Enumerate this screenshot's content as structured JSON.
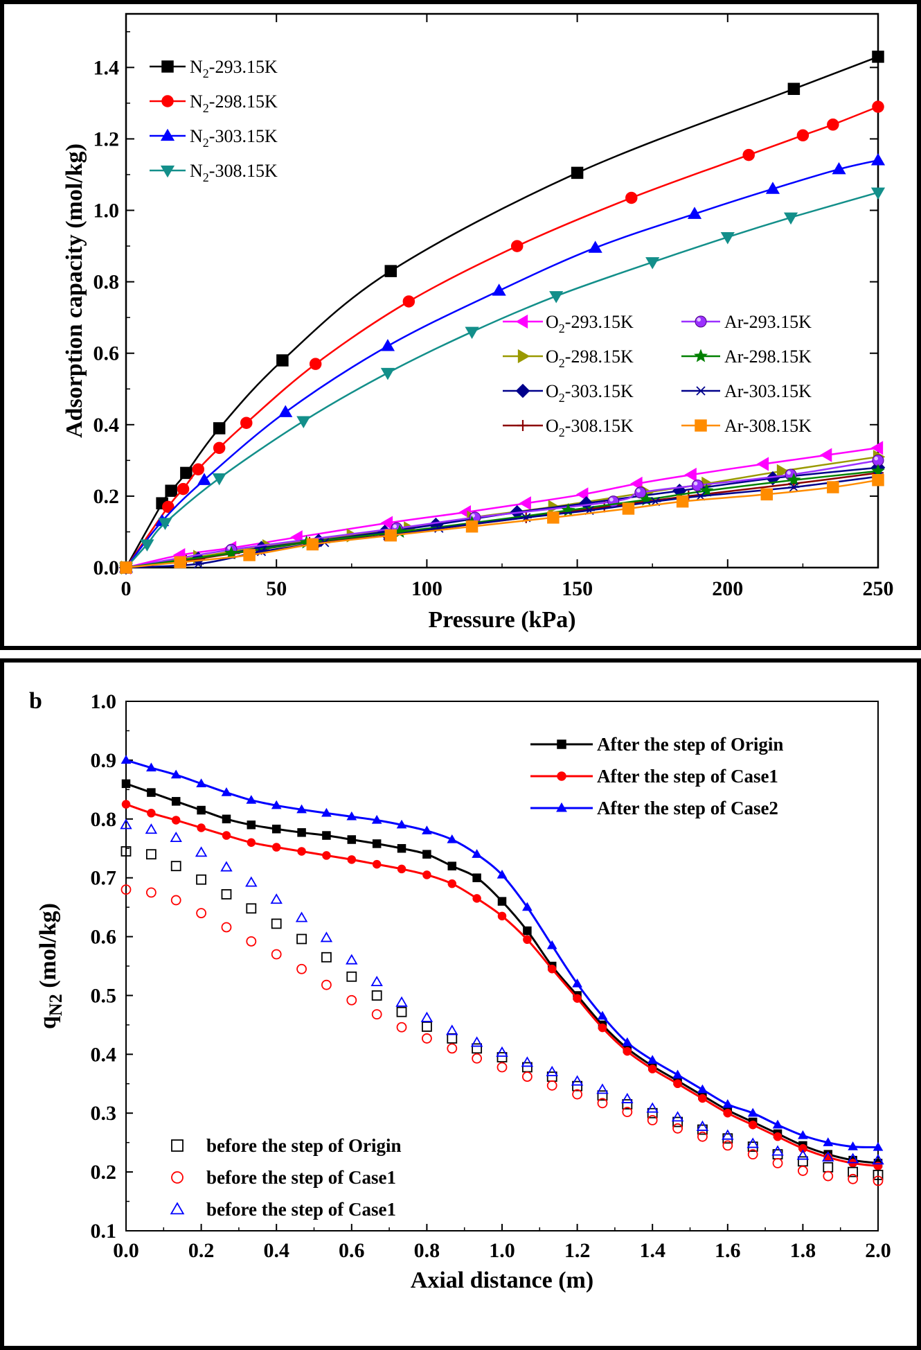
{
  "chart_data": [
    {
      "type": "line",
      "panel_label": "",
      "xlabel": "Pressure (kPa)",
      "ylabel": "Adsorption capacity (mol/kg)",
      "xlim": [
        0,
        250
      ],
      "ylim": [
        0,
        1.55
      ],
      "xticks": [
        0,
        50,
        100,
        150,
        200,
        250
      ],
      "xtick_labels": [
        "0",
        "50",
        "100",
        "150",
        "200",
        "250"
      ],
      "yticks": [
        0.0,
        0.2,
        0.4,
        0.6,
        0.8,
        1.0,
        1.2,
        1.4
      ],
      "ytick_labels": [
        "0.0",
        "0.2",
        "0.4",
        "0.6",
        "0.8",
        "1.0",
        "1.2",
        "1.4"
      ],
      "grid": false,
      "legend_placement": "top-left and center-right",
      "series": [
        {
          "name": "N2-293.15K",
          "label_main": "N",
          "label_sub": "2",
          "label_rest": "-293.15K",
          "color": "#000000",
          "marker": "square",
          "legend_group": "left",
          "x": [
            0,
            12,
            15,
            20,
            31,
            52,
            88,
            150,
            222,
            250
          ],
          "y": [
            0,
            0.18,
            0.215,
            0.265,
            0.39,
            0.58,
            0.83,
            1.105,
            1.34,
            1.43
          ]
        },
        {
          "name": "N2-298.15K",
          "label_main": "N",
          "label_sub": "2",
          "label_rest": "-298.15K",
          "color": "#ff0000",
          "marker": "circle",
          "legend_group": "left",
          "x": [
            0,
            14,
            19,
            24,
            31,
            40,
            63,
            94,
            130,
            168,
            207,
            225,
            235,
            250
          ],
          "y": [
            0,
            0.17,
            0.22,
            0.275,
            0.335,
            0.405,
            0.57,
            0.745,
            0.9,
            1.035,
            1.155,
            1.21,
            1.24,
            1.29
          ]
        },
        {
          "name": "N2-303.15K",
          "label_main": "N",
          "label_sub": "2",
          "label_rest": "-303.15K",
          "color": "#0000ff",
          "marker": "triangle-up",
          "legend_group": "left",
          "x": [
            0,
            12,
            26,
            53,
            87,
            124,
            156,
            189,
            215,
            237,
            250
          ],
          "y": [
            0,
            0.13,
            0.245,
            0.435,
            0.62,
            0.775,
            0.895,
            0.99,
            1.06,
            1.115,
            1.14
          ]
        },
        {
          "name": "N2-308.15K",
          "label_main": "N",
          "label_sub": "2",
          "label_rest": "-308.15K",
          "color": "#138f8a",
          "marker": "triangle-down",
          "legend_group": "left",
          "x": [
            0,
            7,
            13,
            31,
            59,
            87,
            115,
            143,
            175,
            200,
            221,
            250
          ],
          "y": [
            0,
            0.065,
            0.125,
            0.25,
            0.41,
            0.545,
            0.66,
            0.76,
            0.855,
            0.925,
            0.98,
            1.05
          ]
        },
        {
          "name": "O2-293.15K",
          "label_main": "O",
          "label_sub": "2",
          "label_rest": "-293.15K",
          "color": "#ff00ff",
          "marker": "triangle-left",
          "legend_group": "right",
          "x": [
            0,
            18,
            35,
            57,
            87,
            113,
            133,
            152,
            170,
            188,
            212,
            233,
            250
          ],
          "y": [
            0,
            0.035,
            0.055,
            0.085,
            0.125,
            0.155,
            0.18,
            0.205,
            0.235,
            0.26,
            0.29,
            0.315,
            0.335
          ]
        },
        {
          "name": "O2-298.15K",
          "label_main": "O",
          "label_sub": "2",
          "label_rest": "-298.15K",
          "color": "#999900",
          "marker": "triangle-right",
          "legend_group": "right",
          "x": [
            0,
            24,
            47,
            75,
            94,
            115,
            142,
            173,
            193,
            218,
            250
          ],
          "y": [
            0,
            0.03,
            0.06,
            0.09,
            0.11,
            0.14,
            0.17,
            0.21,
            0.235,
            0.27,
            0.31
          ]
        },
        {
          "name": "O2-303.15K",
          "label_main": "O",
          "label_sub": "2",
          "label_rest": "-303.15K",
          "color": "#00008b",
          "marker": "diamond",
          "legend_group": "right",
          "x": [
            0,
            24,
            45,
            64,
            86,
            103,
            130,
            153,
            184,
            215,
            250
          ],
          "y": [
            0,
            0.025,
            0.055,
            0.075,
            0.1,
            0.12,
            0.155,
            0.18,
            0.215,
            0.25,
            0.28
          ]
        },
        {
          "name": "O2-308.15K",
          "label_main": "O",
          "label_sub": "2",
          "label_rest": "-308.15K",
          "color": "#8b0000",
          "marker": "plus",
          "legend_group": "right",
          "x": [
            0,
            20,
            36,
            61,
            86,
            114,
            133,
            159,
            187,
            222,
            250
          ],
          "y": [
            0,
            0.02,
            0.04,
            0.07,
            0.09,
            0.12,
            0.14,
            0.17,
            0.2,
            0.235,
            0.265
          ]
        },
        {
          "name": "Ar-293.15K",
          "label_main": "Ar-293.15K",
          "label_sub": "",
          "label_rest": "",
          "color": "#9b30ff",
          "marker": "sphere",
          "legend_group": "right",
          "x": [
            0,
            35,
            90,
            116,
            162,
            171,
            190,
            221,
            250
          ],
          "y": [
            0,
            0.05,
            0.11,
            0.14,
            0.185,
            0.21,
            0.23,
            0.26,
            0.3
          ]
        },
        {
          "name": "Ar-298.15K",
          "label_main": "Ar-298.15K",
          "label_sub": "",
          "label_rest": "",
          "color": "#008000",
          "marker": "star",
          "legend_group": "right",
          "x": [
            0,
            35,
            60,
            91,
            115,
            147,
            173,
            193,
            222,
            250
          ],
          "y": [
            0,
            0.04,
            0.07,
            0.1,
            0.125,
            0.16,
            0.19,
            0.215,
            0.245,
            0.27
          ]
        },
        {
          "name": "Ar-303.15K",
          "label_main": "Ar-303.15K",
          "label_sub": "",
          "label_rest": "",
          "color": "#00008b",
          "marker": "asterisk",
          "legend_group": "right",
          "x": [
            0,
            24,
            45,
            66,
            87,
            104,
            133,
            154,
            176,
            191,
            222,
            250
          ],
          "y": [
            0,
            0.01,
            0.045,
            0.07,
            0.09,
            0.11,
            0.14,
            0.16,
            0.185,
            0.2,
            0.225,
            0.255
          ]
        },
        {
          "name": "Ar-308.15K",
          "label_main": "Ar-308.15K",
          "label_sub": "",
          "label_rest": "",
          "color": "#ff8c00",
          "marker": "square",
          "legend_group": "right",
          "x": [
            0,
            18,
            41,
            62,
            88,
            115,
            142,
            167,
            185,
            213,
            235,
            250
          ],
          "y": [
            0,
            0.015,
            0.035,
            0.065,
            0.09,
            0.115,
            0.14,
            0.165,
            0.185,
            0.205,
            0.225,
            0.245
          ]
        }
      ]
    },
    {
      "type": "line",
      "panel_label": "b",
      "xlabel": "Axial distance (m)",
      "ylabel_main": "q",
      "ylabel_sub": "N2",
      "ylabel_rest": " (mol/kg)",
      "xlim": [
        0,
        2.0
      ],
      "ylim": [
        0.1,
        1.0
      ],
      "xticks": [
        0.0,
        0.2,
        0.4,
        0.6,
        0.8,
        1.0,
        1.2,
        1.4,
        1.6,
        1.8,
        2.0
      ],
      "xtick_labels": [
        "0.0",
        "0.2",
        "0.4",
        "0.6",
        "0.8",
        "1.0",
        "1.2",
        "1.4",
        "1.6",
        "1.8",
        "2.0"
      ],
      "yticks": [
        0.1,
        0.2,
        0.3,
        0.4,
        0.5,
        0.6,
        0.7,
        0.8,
        0.9,
        1.0
      ],
      "ytick_labels": [
        "0.1",
        "0.2",
        "0.3",
        "0.4",
        "0.5",
        "0.6",
        "0.7",
        "0.8",
        "0.9",
        "1.0"
      ],
      "grid": false,
      "legend_placement": "top-right and bottom-left",
      "series": [
        {
          "name": "After the step of Origin",
          "color": "#000000",
          "marker": "square",
          "filled": true,
          "line": true,
          "legend_group": "top",
          "x": [
            0.0,
            0.067,
            0.133,
            0.2,
            0.267,
            0.333,
            0.4,
            0.467,
            0.533,
            0.6,
            0.667,
            0.733,
            0.8,
            0.867,
            0.933,
            1.0,
            1.067,
            1.133,
            1.2,
            1.267,
            1.333,
            1.4,
            1.467,
            1.533,
            1.6,
            1.667,
            1.733,
            1.8,
            1.867,
            1.933,
            2.0
          ],
          "y": [
            0.86,
            0.845,
            0.83,
            0.815,
            0.8,
            0.79,
            0.783,
            0.777,
            0.772,
            0.765,
            0.758,
            0.75,
            0.74,
            0.72,
            0.7,
            0.66,
            0.61,
            0.55,
            0.5,
            0.45,
            0.41,
            0.38,
            0.355,
            0.33,
            0.305,
            0.285,
            0.265,
            0.245,
            0.23,
            0.22,
            0.215
          ]
        },
        {
          "name": "After the step of Case1",
          "color": "#ff0000",
          "marker": "circle",
          "filled": true,
          "line": true,
          "legend_group": "top",
          "x": [
            0.0,
            0.067,
            0.133,
            0.2,
            0.267,
            0.333,
            0.4,
            0.467,
            0.533,
            0.6,
            0.667,
            0.733,
            0.8,
            0.867,
            0.933,
            1.0,
            1.067,
            1.133,
            1.2,
            1.267,
            1.333,
            1.4,
            1.467,
            1.533,
            1.6,
            1.667,
            1.733,
            1.8,
            1.867,
            1.933,
            2.0
          ],
          "y": [
            0.825,
            0.81,
            0.798,
            0.785,
            0.772,
            0.76,
            0.752,
            0.745,
            0.738,
            0.731,
            0.723,
            0.715,
            0.705,
            0.69,
            0.665,
            0.635,
            0.595,
            0.545,
            0.495,
            0.445,
            0.405,
            0.375,
            0.35,
            0.325,
            0.3,
            0.28,
            0.26,
            0.24,
            0.225,
            0.215,
            0.21
          ]
        },
        {
          "name": "After the step of Case2",
          "color": "#0000ff",
          "marker": "triangle-up",
          "filled": true,
          "line": true,
          "legend_group": "top",
          "x": [
            0.0,
            0.067,
            0.133,
            0.2,
            0.267,
            0.333,
            0.4,
            0.467,
            0.533,
            0.6,
            0.667,
            0.733,
            0.8,
            0.867,
            0.933,
            1.0,
            1.067,
            1.133,
            1.2,
            1.267,
            1.333,
            1.4,
            1.467,
            1.533,
            1.6,
            1.667,
            1.733,
            1.8,
            1.867,
            1.933,
            2.0
          ],
          "y": [
            0.9,
            0.887,
            0.875,
            0.86,
            0.845,
            0.832,
            0.823,
            0.816,
            0.81,
            0.804,
            0.798,
            0.79,
            0.78,
            0.765,
            0.74,
            0.705,
            0.65,
            0.585,
            0.52,
            0.465,
            0.42,
            0.39,
            0.365,
            0.34,
            0.315,
            0.3,
            0.28,
            0.262,
            0.25,
            0.243,
            0.242
          ]
        },
        {
          "name": "before the step of Origin",
          "color": "#000000",
          "marker": "square",
          "filled": false,
          "line": false,
          "legend_group": "bottom",
          "x": [
            0.0,
            0.067,
            0.133,
            0.2,
            0.267,
            0.333,
            0.4,
            0.467,
            0.533,
            0.6,
            0.667,
            0.733,
            0.8,
            0.867,
            0.933,
            1.0,
            1.067,
            1.133,
            1.2,
            1.267,
            1.333,
            1.4,
            1.467,
            1.533,
            1.6,
            1.667,
            1.733,
            1.8,
            1.867,
            1.933,
            2.0
          ],
          "y": [
            0.745,
            0.74,
            0.72,
            0.697,
            0.672,
            0.648,
            0.622,
            0.596,
            0.565,
            0.532,
            0.5,
            0.472,
            0.447,
            0.427,
            0.41,
            0.395,
            0.378,
            0.362,
            0.346,
            0.33,
            0.315,
            0.3,
            0.285,
            0.272,
            0.257,
            0.243,
            0.23,
            0.218,
            0.208,
            0.2,
            0.195
          ]
        },
        {
          "name": "before the step of Case1",
          "color": "#ff0000",
          "marker": "circle",
          "filled": false,
          "line": false,
          "legend_group": "bottom",
          "x": [
            0.0,
            0.067,
            0.133,
            0.2,
            0.267,
            0.333,
            0.4,
            0.467,
            0.533,
            0.6,
            0.667,
            0.733,
            0.8,
            0.867,
            0.933,
            1.0,
            1.067,
            1.133,
            1.2,
            1.267,
            1.333,
            1.4,
            1.467,
            1.533,
            1.6,
            1.667,
            1.733,
            1.8,
            1.867,
            1.933,
            2.0
          ],
          "y": [
            0.68,
            0.675,
            0.662,
            0.64,
            0.616,
            0.592,
            0.57,
            0.545,
            0.518,
            0.492,
            0.468,
            0.446,
            0.427,
            0.41,
            0.393,
            0.378,
            0.362,
            0.347,
            0.332,
            0.317,
            0.302,
            0.288,
            0.274,
            0.26,
            0.245,
            0.23,
            0.215,
            0.202,
            0.193,
            0.188,
            0.185
          ]
        },
        {
          "name": "before the step of Case1",
          "color": "#0000ff",
          "marker": "triangle-up",
          "filled": false,
          "line": false,
          "legend_group": "bottom",
          "x": [
            0.0,
            0.067,
            0.133,
            0.2,
            0.267,
            0.333,
            0.4,
            0.467,
            0.533,
            0.6,
            0.667,
            0.733,
            0.8,
            0.867,
            0.933,
            1.0,
            1.067,
            1.133,
            1.2,
            1.267,
            1.333,
            1.4,
            1.467,
            1.533,
            1.6,
            1.667,
            1.733,
            1.8,
            1.867,
            1.933,
            2.0
          ],
          "y": [
            0.79,
            0.782,
            0.768,
            0.743,
            0.718,
            0.692,
            0.663,
            0.632,
            0.598,
            0.56,
            0.523,
            0.488,
            0.462,
            0.44,
            0.42,
            0.403,
            0.386,
            0.37,
            0.354,
            0.34,
            0.324,
            0.308,
            0.293,
            0.277,
            0.262,
            0.248,
            0.235,
            0.228,
            0.225,
            0.222,
            0.22
          ]
        }
      ]
    }
  ]
}
